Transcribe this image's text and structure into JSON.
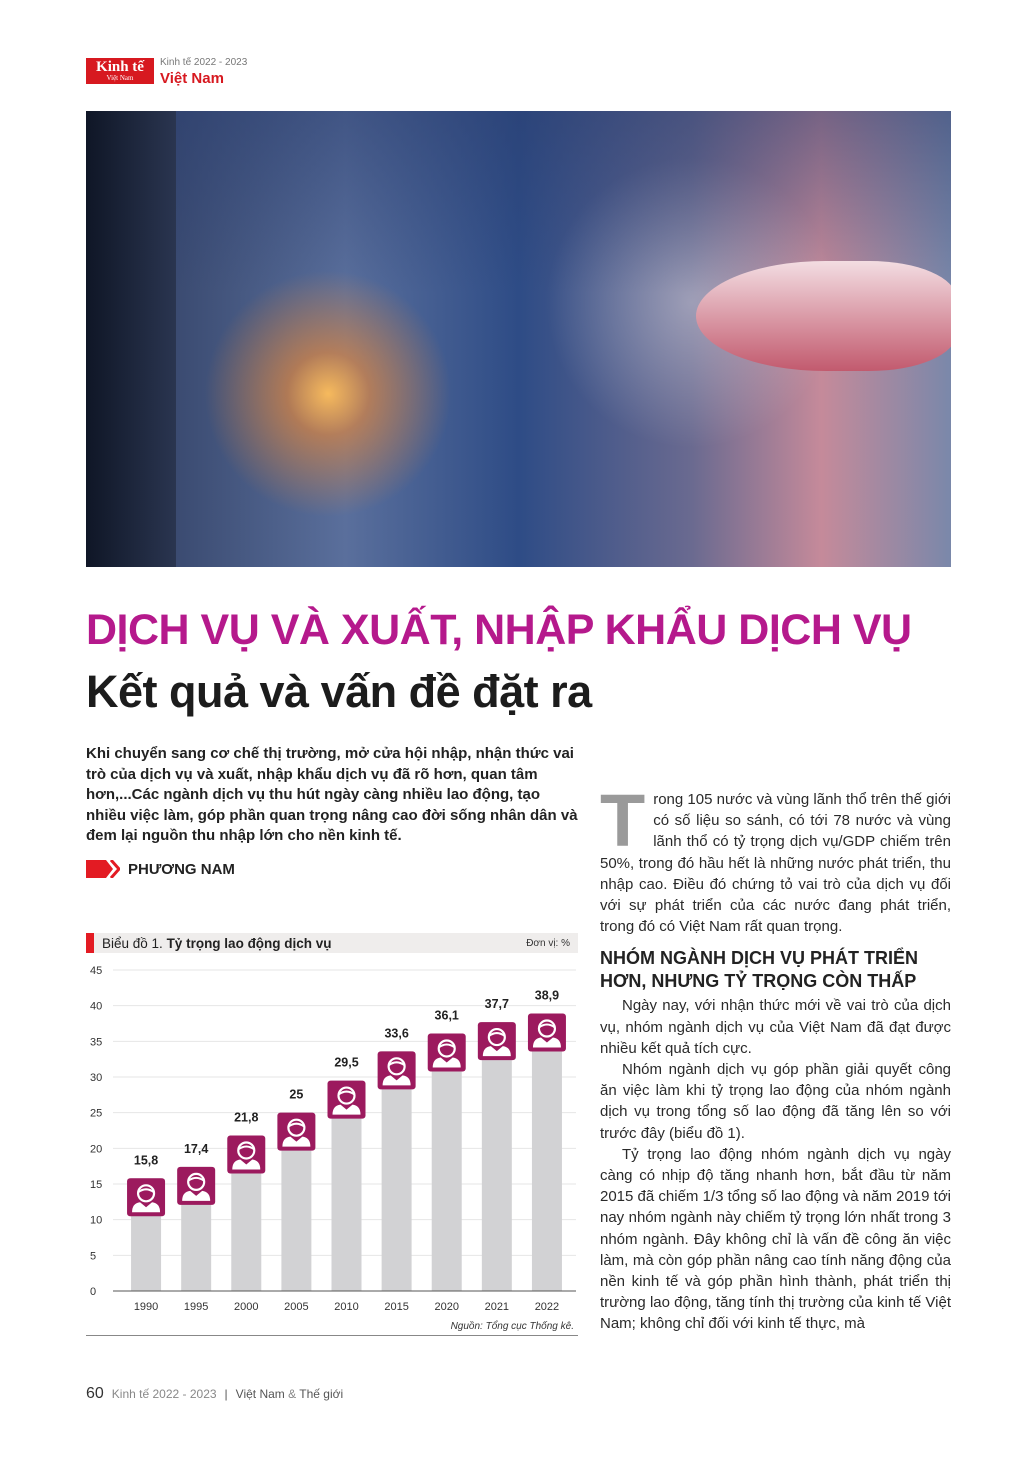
{
  "header": {
    "logo": {
      "line1": "Kinh tế",
      "line2": "Việt Nam"
    },
    "edition": "Kinh tế 2022 - 2023",
    "section": "Việt Nam"
  },
  "article": {
    "title": "DỊCH VỤ VÀ XUẤT, NHẬP KHẨU DỊCH VỤ",
    "subtitle": "Kết quả và vấn đề đặt ra",
    "lead": "Khi chuyển sang cơ chế thị trường, mở cửa hội nhập, nhận thức vai trò của dịch vụ và xuất, nhập khẩu dịch vụ đã rõ hơn, quan tâm hơn,...Các ngành dịch vụ thu hút ngày càng nhiều lao động, tạo nhiều việc làm, góp phần quan trọng nâng cao đời sống nhân dân và đem lại nguồn thu nhập lớn cho nền kinh tế.",
    "author": "PHƯƠNG NAM",
    "drop_cap": "T",
    "para1": "rong 105 nước và vùng lãnh thổ trên thế giới có số liệu so sánh, có tới 78 nước và vùng lãnh thổ có tỷ trọng dịch vụ/GDP chiếm trên 50%, trong đó hầu hết là những nước phát triển, thu nhập cao. Điều đó chứng tỏ vai trò của dịch vụ đối với sự phát triển của các nước đang phát triển, trong đó có Việt Nam rất quan trọng.",
    "heading": "NHÓM NGÀNH DỊCH VỤ PHÁT TRIỂN HƠN, NHƯNG TỶ TRỌNG CÒN THẤP",
    "para2": "Ngày nay, với nhận thức mới về vai trò của dịch vụ, nhóm ngành dịch vụ của Việt Nam đã đạt được nhiều kết quả tích cực.",
    "para3": "Nhóm ngành dịch vụ góp phần giải quyết công ăn việc làm khi tỷ trọng lao động của nhóm ngành dịch vụ trong tổng số lao động đã tăng lên so với trước đây (biểu đồ 1).",
    "para4": "Tỷ trọng lao động nhóm ngành dịch vụ ngày càng có nhịp độ tăng nhanh hơn, bắt đầu từ năm 2015 đã chiếm 1/3 tổng số lao động và năm 2019 tới nay nhóm ngành này chiếm tỷ trọng lớn nhất trong 3 nhóm ngành. Đây không chỉ là vấn đề công ăn việc làm, mà còn góp phần nâng cao tính năng động của nền kinh tế và góp phần hình thành, phát triển thị trường lao động, tăng tính thị trường của kinh tế Việt Nam; không chỉ đối với kinh tế thực, mà"
  },
  "chart_data": {
    "type": "bar",
    "title_prefix": "Biểu đồ 1.",
    "title": "Tỷ trọng lao động dịch vụ",
    "unit": "Đơn vị: %",
    "categories": [
      "1990",
      "1995",
      "2000",
      "2005",
      "2010",
      "2015",
      "2020",
      "2021",
      "2022"
    ],
    "values": [
      15.8,
      17.4,
      21.8,
      25,
      29.5,
      33.6,
      36.1,
      37.7,
      38.9
    ],
    "value_labels": [
      "15,8",
      "17,4",
      "21,8",
      "25",
      "29,5",
      "33,6",
      "36,1",
      "37,7",
      "38,9"
    ],
    "yticks": [
      "0",
      "5",
      "10",
      "15",
      "20",
      "25",
      "30",
      "35",
      "40",
      "45"
    ],
    "ylim": [
      0,
      45
    ],
    "grid": true,
    "marker_icon": "worker-icon",
    "source": "Nguồn: Tổng cục Thống kê.",
    "colors": {
      "bar": "#d2d2d4",
      "marker": "#9c1a5e",
      "accent": "#e31b23"
    }
  },
  "footer": {
    "page": "60",
    "edition": "Kinh tế 2022 - 2023",
    "separator": "|",
    "pub_a": "Việt Nam",
    "amp": "&",
    "pub_b": "Thế giới"
  },
  "colors": {
    "title": "#b5198c",
    "brand": "#d71920"
  }
}
